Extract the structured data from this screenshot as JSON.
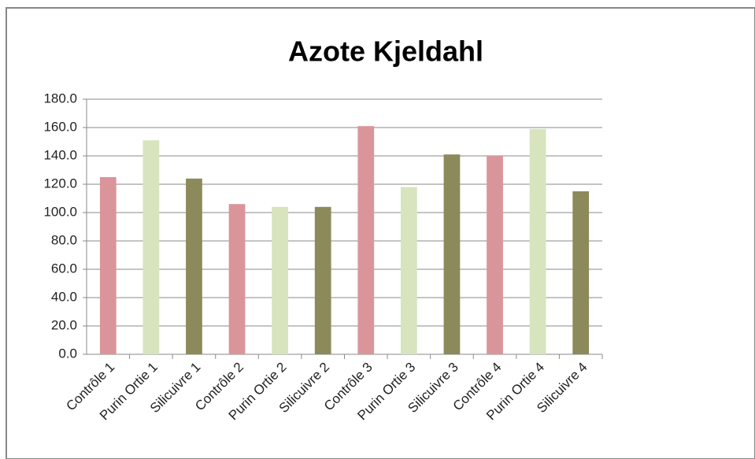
{
  "chart_data": {
    "type": "bar",
    "title": "Azote Kjeldahl",
    "categories": [
      "Contrôle 1",
      "Purin Ortie 1",
      "Silicuivre 1",
      "Contrôle 2",
      "Purin Ortie 2",
      "Silicuivre 2",
      "Contrôle 3",
      "Purin Ortie 3",
      "Silicuivre 3",
      "Contrôle 4",
      "Purin Ortie 4",
      "Silicuivre 4"
    ],
    "values": [
      125,
      151,
      124,
      106,
      104,
      104,
      161,
      118,
      141,
      140,
      159,
      115
    ],
    "colors": [
      "#d9959a",
      "#d7e4bd",
      "#8c8a5a",
      "#d9959a",
      "#d7e4bd",
      "#8c8a5a",
      "#d9959a",
      "#d7e4bd",
      "#8c8a5a",
      "#d9959a",
      "#d7e4bd",
      "#8c8a5a"
    ],
    "ylim": [
      0,
      180
    ],
    "yticks": [
      {
        "value": 0,
        "label": "0.0"
      },
      {
        "value": 20,
        "label": "20.0"
      },
      {
        "value": 40,
        "label": "40.0"
      },
      {
        "value": 60,
        "label": "60.0"
      },
      {
        "value": 80,
        "label": "80.0"
      },
      {
        "value": 100,
        "label": "100.0"
      },
      {
        "value": 120,
        "label": "120.0"
      },
      {
        "value": 140,
        "label": "140.0"
      },
      {
        "value": 160,
        "label": "160.0"
      },
      {
        "value": 180,
        "label": "180.0"
      }
    ],
    "grid": true
  }
}
